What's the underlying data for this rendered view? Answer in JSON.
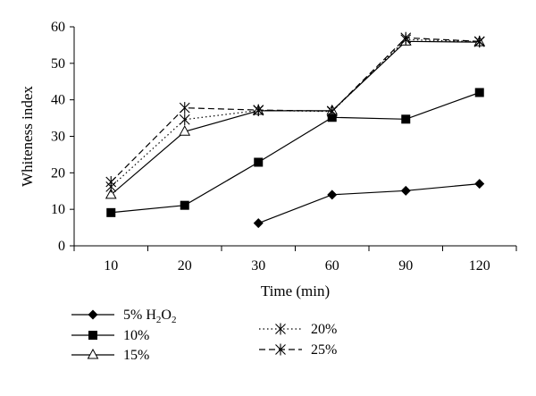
{
  "chart_data": {
    "type": "line",
    "xlabel": "Time (min)",
    "ylabel": "Whiteness index",
    "categories": [
      "10",
      "20",
      "30",
      "60",
      "90",
      "120"
    ],
    "ylim": [
      0,
      60
    ],
    "yticks": [
      "0",
      "10",
      "20",
      "30",
      "40",
      "50",
      "60"
    ],
    "grid": false,
    "legend_position": "bottom",
    "series": [
      {
        "name": "5% H2O2",
        "name_main": "5% H",
        "name_sub1": "2",
        "name_mid": "O",
        "name_sub2": "2",
        "marker": "diamond",
        "dash": "solid",
        "values": [
          null,
          null,
          6.2,
          14,
          15.1,
          17
        ]
      },
      {
        "name": "10%",
        "marker": "square",
        "dash": "solid",
        "values": [
          9.1,
          11.1,
          22.9,
          35.2,
          34.7,
          42
        ]
      },
      {
        "name": "15%",
        "marker": "triangle",
        "dash": "solid",
        "values": [
          14,
          31.3,
          37,
          37,
          56,
          55.8
        ]
      },
      {
        "name": "20%",
        "marker": "star",
        "dash": "dotted",
        "values": [
          16.2,
          34.6,
          37.1,
          36.8,
          56.5,
          55.9
        ]
      },
      {
        "name": "25%",
        "marker": "star",
        "dash": "dashed",
        "values": [
          17.5,
          37.8,
          37.2,
          36.9,
          57,
          56
        ]
      }
    ]
  }
}
